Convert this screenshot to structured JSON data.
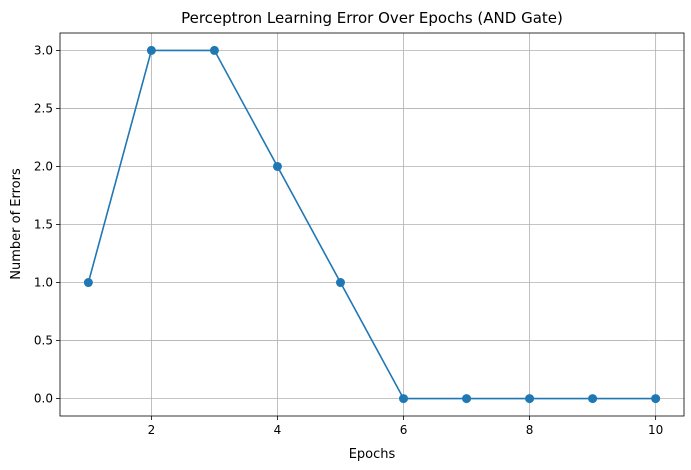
{
  "chart_data": {
    "type": "line",
    "title": "Perceptron Learning Error Over Epochs (AND Gate)",
    "xlabel": "Epochs",
    "ylabel": "Number of Errors",
    "x": [
      1,
      2,
      3,
      4,
      5,
      6,
      7,
      8,
      9,
      10
    ],
    "series": [
      {
        "values": [
          1,
          3,
          3,
          2,
          1,
          0,
          0,
          0,
          0,
          0
        ],
        "color": "#1f77b4",
        "marker": "circle"
      }
    ],
    "xlim": [
      0.55,
      10.45
    ],
    "ylim": [
      -0.15,
      3.15
    ],
    "xticks": [
      2,
      4,
      6,
      8,
      10
    ],
    "xtick_labels": [
      "2",
      "4",
      "6",
      "8",
      "10"
    ],
    "yticks": [
      0.0,
      0.5,
      1.0,
      1.5,
      2.0,
      2.5,
      3.0
    ],
    "ytick_labels": [
      "0.0",
      "0.5",
      "1.0",
      "1.5",
      "2.0",
      "2.5",
      "3.0"
    ],
    "grid": true,
    "legend": "none"
  }
}
